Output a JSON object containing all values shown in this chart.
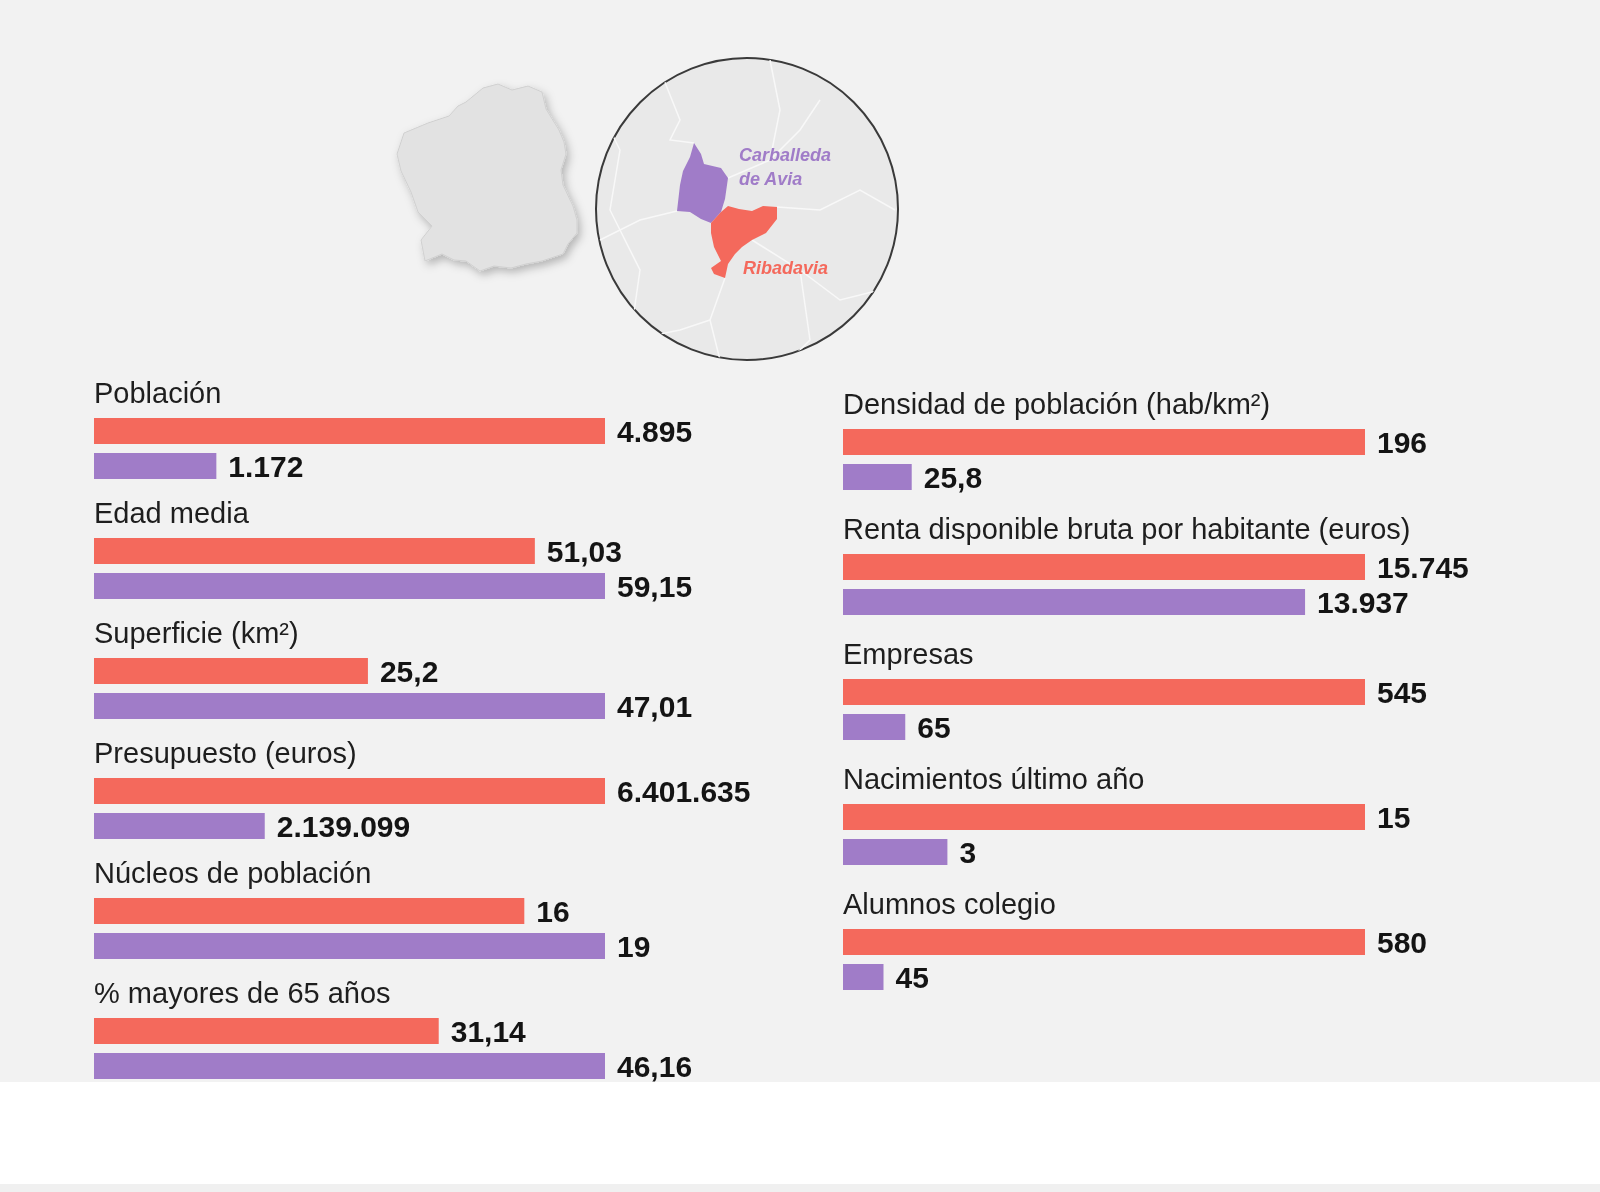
{
  "chart_data": [
    {
      "type": "other",
      "annotations": [
        "Carballeda de Avia",
        "Ribadavia"
      ],
      "colors": [
        "#a07cc8",
        "#f4695c"
      ]
    },
    {
      "type": "bar",
      "orientation": "horizontal",
      "title": "Población",
      "categories": [
        null,
        null
      ],
      "values": [
        4895,
        1172
      ],
      "value_labels": [
        "4.895",
        "1.172"
      ],
      "colors": [
        "#f4695c",
        "#a07cc8"
      ],
      "tick_labels": false
    },
    {
      "type": "bar",
      "orientation": "horizontal",
      "title": "Edad media",
      "categories": [
        null,
        null
      ],
      "values": [
        51.03,
        59.15
      ],
      "value_labels": [
        "51,03",
        "59,15"
      ],
      "colors": [
        "#f4695c",
        "#a07cc8"
      ],
      "tick_labels": false
    },
    {
      "type": "bar",
      "orientation": "horizontal",
      "title": "Superficie (km²)",
      "categories": [
        null,
        null
      ],
      "values": [
        25.2,
        47.01
      ],
      "value_labels": [
        "25,2",
        "47,01"
      ],
      "colors": [
        "#f4695c",
        "#a07cc8"
      ],
      "tick_labels": false
    },
    {
      "type": "bar",
      "orientation": "horizontal",
      "title": "Presupuesto (euros)",
      "categories": [
        null,
        null
      ],
      "values": [
        6401635,
        2139099
      ],
      "value_labels": [
        "6.401.635",
        "2.139.099"
      ],
      "colors": [
        "#f4695c",
        "#a07cc8"
      ],
      "tick_labels": false
    },
    {
      "type": "bar",
      "orientation": "horizontal",
      "title": "Núcleos de población",
      "categories": [
        null,
        null
      ],
      "values": [
        16,
        19
      ],
      "value_labels": [
        "16",
        "19"
      ],
      "colors": [
        "#f4695c",
        "#a07cc8"
      ],
      "tick_labels": false
    },
    {
      "type": "bar",
      "orientation": "horizontal",
      "title": "% mayores de 65 años",
      "categories": [
        null,
        null
      ],
      "values": [
        31.14,
        46.16
      ],
      "value_labels": [
        "31,14",
        "46,16"
      ],
      "colors": [
        "#f4695c",
        "#a07cc8"
      ],
      "tick_labels": false
    },
    {
      "type": "bar",
      "orientation": "horizontal",
      "title": "Densidad de población (hab/km²)",
      "categories": [
        null,
        null
      ],
      "values": [
        196,
        25.8
      ],
      "value_labels": [
        "196",
        "25,8"
      ],
      "colors": [
        "#f4695c",
        "#a07cc8"
      ],
      "tick_labels": false
    },
    {
      "type": "bar",
      "orientation": "horizontal",
      "title": "Renta disponible bruta por habitante (euros)",
      "categories": [
        null,
        null
      ],
      "values": [
        15745,
        13937
      ],
      "value_labels": [
        "15.745",
        "13.937"
      ],
      "colors": [
        "#f4695c",
        "#a07cc8"
      ],
      "tick_labels": false
    },
    {
      "type": "bar",
      "orientation": "horizontal",
      "title": "Empresas",
      "categories": [
        null,
        null
      ],
      "values": [
        545,
        65
      ],
      "value_labels": [
        "545",
        "65"
      ],
      "colors": [
        "#f4695c",
        "#a07cc8"
      ],
      "tick_labels": false
    },
    {
      "type": "bar",
      "orientation": "horizontal",
      "title": "Nacimientos último año",
      "categories": [
        null,
        null
      ],
      "values": [
        15,
        3
      ],
      "value_labels": [
        "15",
        "3"
      ],
      "colors": [
        "#f4695c",
        "#a07cc8"
      ],
      "tick_labels": false
    },
    {
      "type": "bar",
      "orientation": "horizontal",
      "title": "Alumnos colegio",
      "categories": [
        null,
        null
      ],
      "values": [
        580,
        45
      ],
      "value_labels": [
        "580",
        "45"
      ],
      "colors": [
        "#f4695c",
        "#a07cc8"
      ],
      "tick_labels": false
    }
  ]
}
